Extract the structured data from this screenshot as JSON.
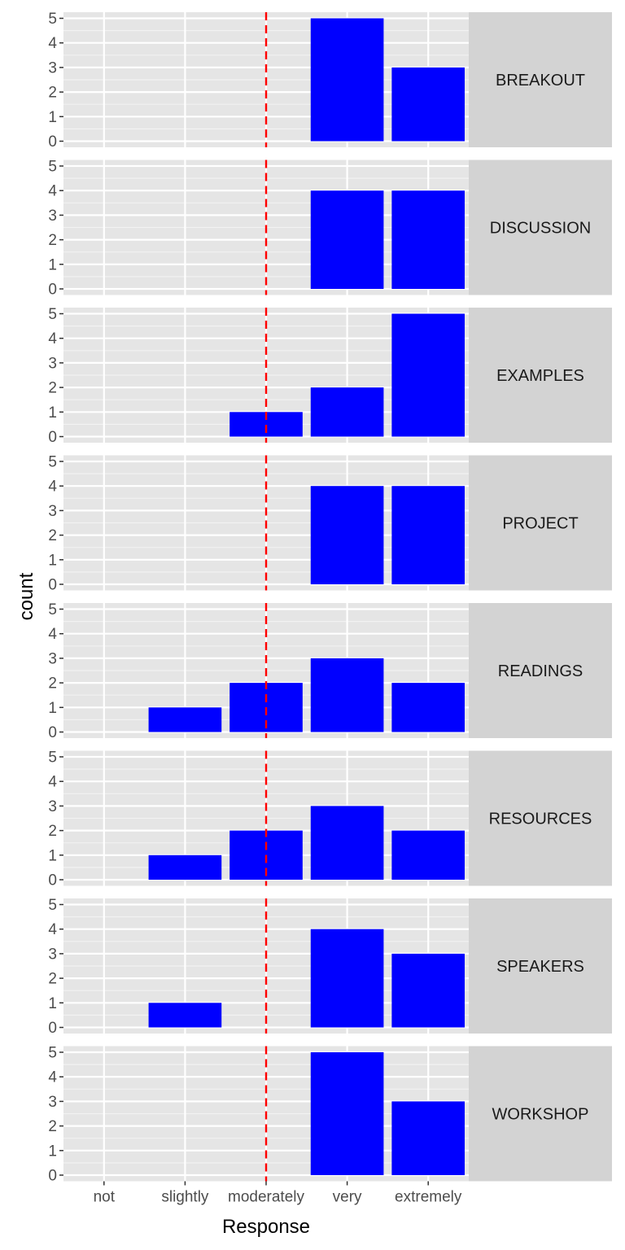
{
  "chart_data": {
    "type": "bar",
    "facet_by": "row",
    "categories": [
      "not",
      "slightly",
      "moderately",
      "very",
      "extremely"
    ],
    "xlabel": "Response",
    "ylabel": "count",
    "ylim": [
      0,
      5
    ],
    "yticks": [
      0,
      1,
      2,
      3,
      4,
      5
    ],
    "reference_line": {
      "x": "moderately",
      "style": "dashed",
      "color": "#ff0000"
    },
    "bar_color": "#0000ff",
    "panel_background": "#e5e5e5",
    "strip_background": "#d3d3d3",
    "grid": true,
    "panels": [
      {
        "label": "BREAKOUT",
        "values": [
          0,
          0,
          0,
          5,
          3
        ]
      },
      {
        "label": "DISCUSSION",
        "values": [
          0,
          0,
          0,
          4,
          4
        ]
      },
      {
        "label": "EXAMPLES",
        "values": [
          0,
          0,
          1,
          2,
          5
        ]
      },
      {
        "label": "PROJECT",
        "values": [
          0,
          0,
          0,
          4,
          4
        ]
      },
      {
        "label": "READINGS",
        "values": [
          0,
          1,
          2,
          3,
          2
        ]
      },
      {
        "label": "RESOURCES",
        "values": [
          0,
          1,
          2,
          3,
          2
        ]
      },
      {
        "label": "SPEAKERS",
        "values": [
          0,
          1,
          0,
          4,
          3
        ]
      },
      {
        "label": "WORKSHOP",
        "values": [
          0,
          0,
          0,
          5,
          3
        ]
      }
    ]
  }
}
